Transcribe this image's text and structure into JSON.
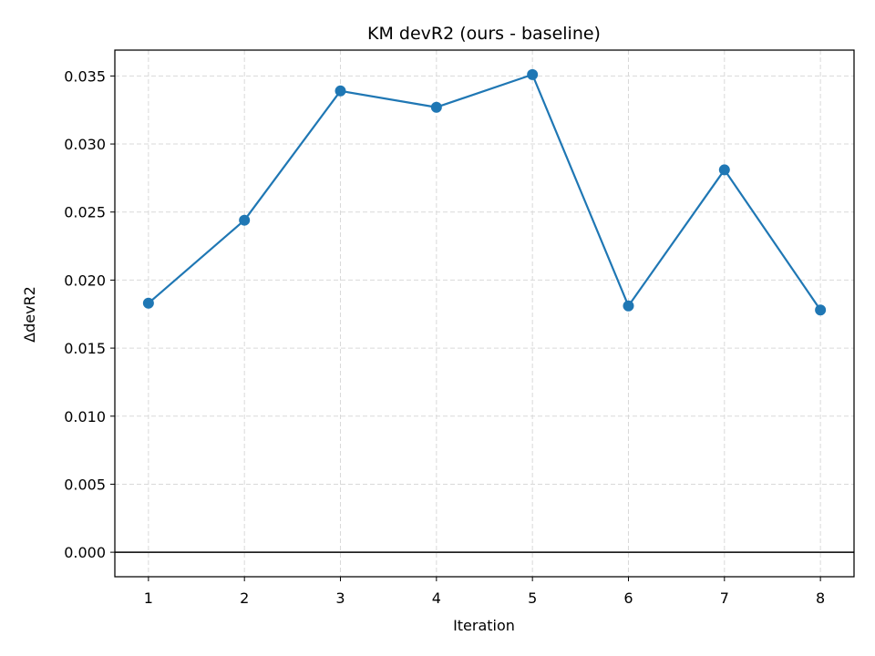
{
  "chart_data": {
    "type": "line",
    "title": "KM devR2 (ours - baseline)",
    "xlabel": "Iteration",
    "ylabel": "ΔdevR2",
    "x": [
      1,
      2,
      3,
      4,
      5,
      6,
      7,
      8
    ],
    "x_ticks": [
      "1",
      "2",
      "3",
      "4",
      "5",
      "6",
      "7",
      "8"
    ],
    "xlim": [
      0.65,
      8.35
    ],
    "y_ticks": [
      "0.000",
      "0.005",
      "0.010",
      "0.015",
      "0.020",
      "0.025",
      "0.030",
      "0.035"
    ],
    "y_tick_values": [
      0,
      0.005,
      0.01,
      0.015,
      0.02,
      0.025,
      0.03,
      0.035
    ],
    "ylim": [
      -0.0018,
      0.0369
    ],
    "series": [
      {
        "values": [
          0.0183,
          0.0244,
          0.0339,
          0.0327,
          0.0351,
          0.0181,
          0.0281,
          0.0178
        ],
        "color": "#1f77b4",
        "marker": "circle"
      }
    ],
    "reference_line": {
      "y": 0,
      "color": "#000000"
    },
    "grid": true,
    "grid_style": "dashed"
  }
}
